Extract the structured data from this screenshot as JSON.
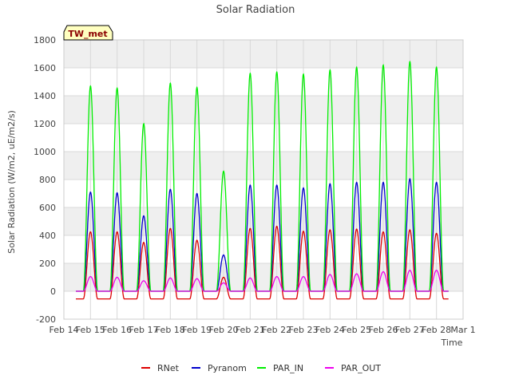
{
  "chart_data": {
    "type": "line",
    "title": "Solar Radiation",
    "xlabel": "Time",
    "ylabel": "Solar Radiation (W/m2, uE/m2/s)",
    "badge": "TW_met",
    "xlim": [
      14,
      29
    ],
    "ylim": [
      -200,
      1800
    ],
    "yticks": [
      -200,
      0,
      200,
      400,
      600,
      800,
      1000,
      1200,
      1400,
      1600,
      1800
    ],
    "xticks": [
      {
        "value": 14,
        "label": "Feb 14"
      },
      {
        "value": 15,
        "label": "Feb 15"
      },
      {
        "value": 16,
        "label": "Feb 16"
      },
      {
        "value": 17,
        "label": "Feb 17"
      },
      {
        "value": 18,
        "label": "Feb 18"
      },
      {
        "value": 19,
        "label": "Feb 19"
      },
      {
        "value": 20,
        "label": "Feb 20"
      },
      {
        "value": 21,
        "label": "Feb 21"
      },
      {
        "value": 22,
        "label": "Feb 22"
      },
      {
        "value": 23,
        "label": "Feb 23"
      },
      {
        "value": 24,
        "label": "Feb 24"
      },
      {
        "value": 25,
        "label": "Feb 25"
      },
      {
        "value": 26,
        "label": "Feb 26"
      },
      {
        "value": 27,
        "label": "Feb 27"
      },
      {
        "value": 28,
        "label": "Feb 28"
      },
      {
        "value": 29,
        "label": "Mar 1"
      }
    ],
    "grid": true,
    "legend_position": "bottom",
    "daily_peak_x": [
      15,
      16,
      17,
      18,
      19,
      20,
      21,
      22,
      23,
      24,
      25,
      26,
      27,
      28
    ],
    "series": [
      {
        "name": "RNet",
        "color": "#dd0000",
        "night_value": -55,
        "daily_peaks": [
          425,
          425,
          350,
          450,
          365,
          100,
          450,
          465,
          430,
          440,
          445,
          425,
          440,
          415
        ]
      },
      {
        "name": "Pyranom",
        "color": "#0000cc",
        "night_value": 0,
        "daily_peaks": [
          710,
          705,
          540,
          730,
          700,
          260,
          760,
          760,
          740,
          770,
          780,
          780,
          805,
          780
        ]
      },
      {
        "name": "PAR_IN",
        "color": "#00ee00",
        "night_value": 0,
        "daily_peaks": [
          1470,
          1455,
          1200,
          1490,
          1460,
          860,
          1560,
          1570,
          1555,
          1585,
          1605,
          1620,
          1645,
          1605
        ]
      },
      {
        "name": "PAR_OUT",
        "color": "#ee00ee",
        "night_value": 0,
        "daily_peaks": [
          105,
          100,
          75,
          95,
          90,
          60,
          95,
          105,
          105,
          120,
          125,
          140,
          150,
          150
        ]
      }
    ]
  }
}
